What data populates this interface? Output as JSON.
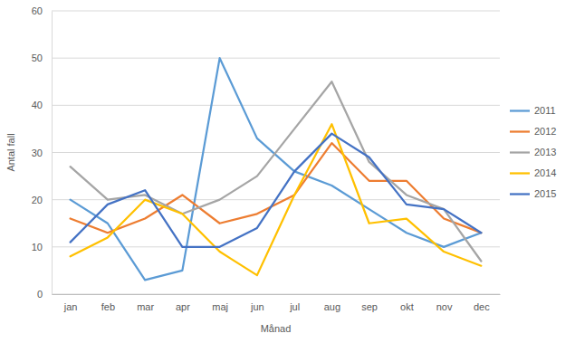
{
  "chart_data": {
    "type": "line",
    "x_label": "Månad",
    "y_label": "Antal fall",
    "categories": [
      "jan",
      "feb",
      "mar",
      "apr",
      "maj",
      "jun",
      "jul",
      "aug",
      "sep",
      "okt",
      "nov",
      "dec"
    ],
    "series": [
      {
        "name": "2011",
        "color": "#5b9bd5",
        "values": [
          20,
          15,
          3,
          5,
          50,
          33,
          26,
          23,
          18,
          13,
          10,
          13
        ]
      },
      {
        "name": "2012",
        "color": "#ed7d31",
        "values": [
          16,
          13,
          16,
          21,
          15,
          17,
          21,
          32,
          24,
          24,
          16,
          13
        ]
      },
      {
        "name": "2013",
        "color": "#a5a5a5",
        "values": [
          27,
          20,
          21,
          17,
          20,
          25,
          35,
          45,
          28,
          21,
          18,
          7
        ]
      },
      {
        "name": "2014",
        "color": "#ffc000",
        "values": [
          8,
          12,
          20,
          17,
          9,
          4,
          21,
          36,
          15,
          16,
          9,
          6
        ]
      },
      {
        "name": "2015",
        "color": "#4472c4",
        "values": [
          11,
          19,
          22,
          10,
          10,
          14,
          26,
          34,
          29,
          19,
          18,
          13
        ]
      }
    ],
    "ylim": [
      0,
      60
    ],
    "yticks": [
      0,
      10,
      20,
      30,
      40,
      50,
      60
    ],
    "grid": true,
    "legend": "right"
  }
}
